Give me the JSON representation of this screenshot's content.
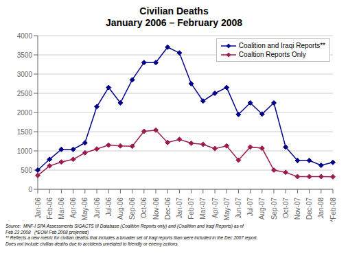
{
  "chart_data": {
    "type": "line",
    "title": "Civilian Deaths",
    "subtitle": "January 2006 – February 2008",
    "categories": [
      "Jan-06",
      "Feb-06",
      "Mar-06",
      "Apr-06",
      "May-06",
      "Jun-06",
      "Jul-06",
      "Aug-06",
      "Sep-06",
      "Oct-06",
      "Nov-06",
      "Dec-06",
      "Jan-07",
      "Feb-07",
      "Mar-07",
      "Apr-07",
      "May-07",
      "Jun-07",
      "Jul-07",
      "Aug-07",
      "Sep-07",
      "Oct-07",
      "Nov-07",
      "Dec-07",
      "Jan-08",
      "*Feb-08"
    ],
    "series": [
      {
        "name": "Coalition and Iraqi Reports**",
        "color": "#00008B",
        "values": [
          500,
          780,
          1040,
          1040,
          1210,
          2150,
          2650,
          2250,
          2850,
          3300,
          3300,
          3700,
          3550,
          2750,
          2300,
          2500,
          2650,
          1950,
          2250,
          1960,
          2250,
          1100,
          750,
          750,
          625,
          700
        ]
      },
      {
        "name": "Coaltion Reports Only",
        "color": "#9B1B50",
        "values": [
          360,
          610,
          710,
          780,
          950,
          1050,
          1150,
          1130,
          1120,
          1510,
          1540,
          1220,
          1300,
          1200,
          1170,
          1060,
          1130,
          760,
          1100,
          1070,
          500,
          440,
          330,
          330,
          330,
          325
        ]
      }
    ],
    "ylim": [
      0,
      4000
    ],
    "yticks": [
      0,
      500,
      1000,
      1500,
      2000,
      2500,
      3000,
      3500,
      4000
    ],
    "grid": true,
    "legend": "upper right",
    "marker": "diamond",
    "annotations": [
      "Source:  MNF-I SPA Assessments SIGACTS III Database (Coalition Reports only) and (Coalition and Iraqi Reports) as of\nFeb 23 2008   (*EOM Feb 2008 projected)\n** Reflects a new metric for civilian deaths that includes a broader set of Iraqi reports than were included in the Dec 2007 report.\nDoes not include civilian deaths due to accidents unrelated to friendly or enemy actions."
    ]
  }
}
